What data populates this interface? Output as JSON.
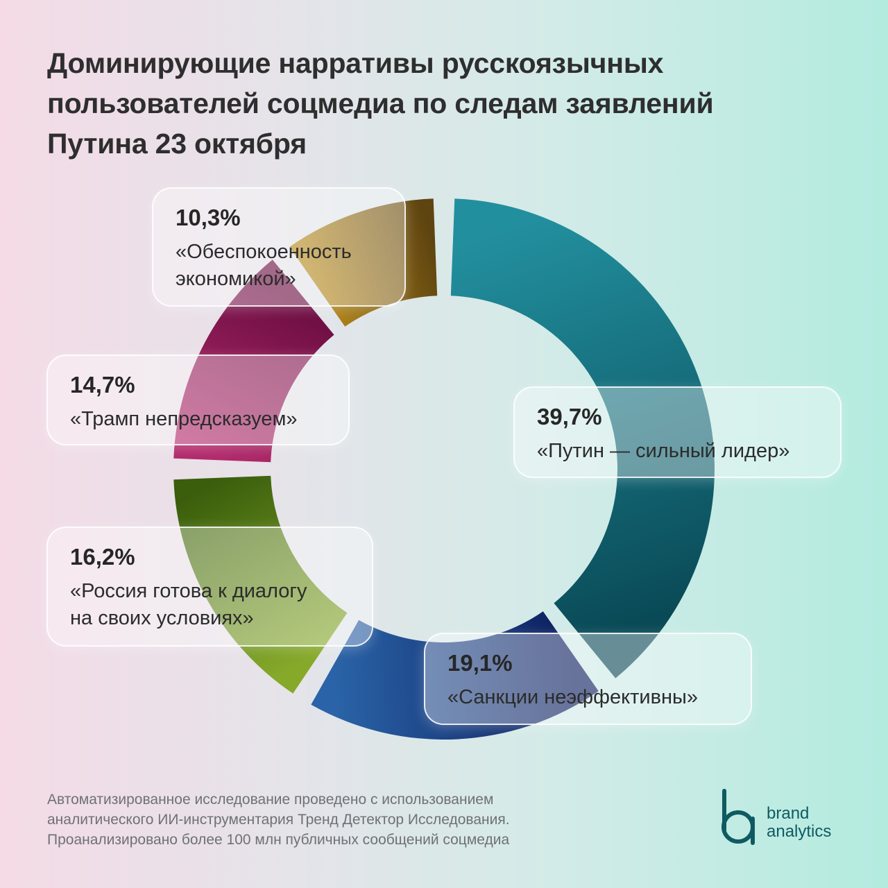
{
  "title": "Доминирующие нарративы русскоязычных пользователей соцмедиа по следам заявлений Путина 23 октября",
  "chart_data": {
    "type": "pie",
    "subtype": "donut",
    "title": "Доминирующие нарративы русскоязычных пользователей соцмедиа по следам заявлений Путина 23 октября",
    "slices": [
      {
        "id": "putin",
        "label": "«Путин — сильный лидер»",
        "value": 39.7,
        "value_label": "39,7%",
        "color_start": "#228f9e",
        "color_end": "#0a4a57"
      },
      {
        "id": "sanctions",
        "label": "«Санкции неэффективны»",
        "value": 19.1,
        "value_label": "19,1%",
        "color_start": "#0c1e5e",
        "color_end": "#2a63a7"
      },
      {
        "id": "dialogue",
        "label": "«Россия готова к диалогу на своих условиях»",
        "value": 16.2,
        "value_label": "16,2%",
        "color_start": "#86a92a",
        "color_end": "#3a5e0c"
      },
      {
        "id": "trump",
        "label": "«Трамп непредсказуем»",
        "value": 14.7,
        "value_label": "14,7%",
        "color_start": "#b2296b",
        "color_end": "#6a0d41"
      },
      {
        "id": "economy",
        "label": "«Обеспокоенность экономикой»",
        "value": 10.3,
        "value_label": "10,3%",
        "color_start": "#b3861a",
        "color_end": "#5e4410"
      }
    ]
  },
  "labels": {
    "putin": {
      "pct": "39,7%",
      "text": "«Путин — сильный лидер»"
    },
    "sanctions": {
      "pct": "19,1%",
      "text": "«Санкции неэффективны»"
    },
    "dialogue": {
      "pct": "16,2%",
      "text_line1": "«Россия готова к диалогу",
      "text_line2": "на своих условиях»"
    },
    "trump": {
      "pct": "14,7%",
      "text": "«Трамп непредсказуем»"
    },
    "economy": {
      "pct": "10,3%",
      "text_line1": "«Обеспокоенность",
      "text_line2": "экономикой»"
    }
  },
  "footer": {
    "line1": "Автоматизированное исследование проведено с использованием",
    "line2": "аналитического ИИ-инструментария Тренд Детектор Исследования.",
    "line3": "Проанализировано более 100 млн публичных сообщений соцмедиа"
  },
  "brand": {
    "icon": "brand-analytics-logo-icon",
    "name_line1": "brand",
    "name_line2": "analytics",
    "color": "#0f5a62"
  }
}
